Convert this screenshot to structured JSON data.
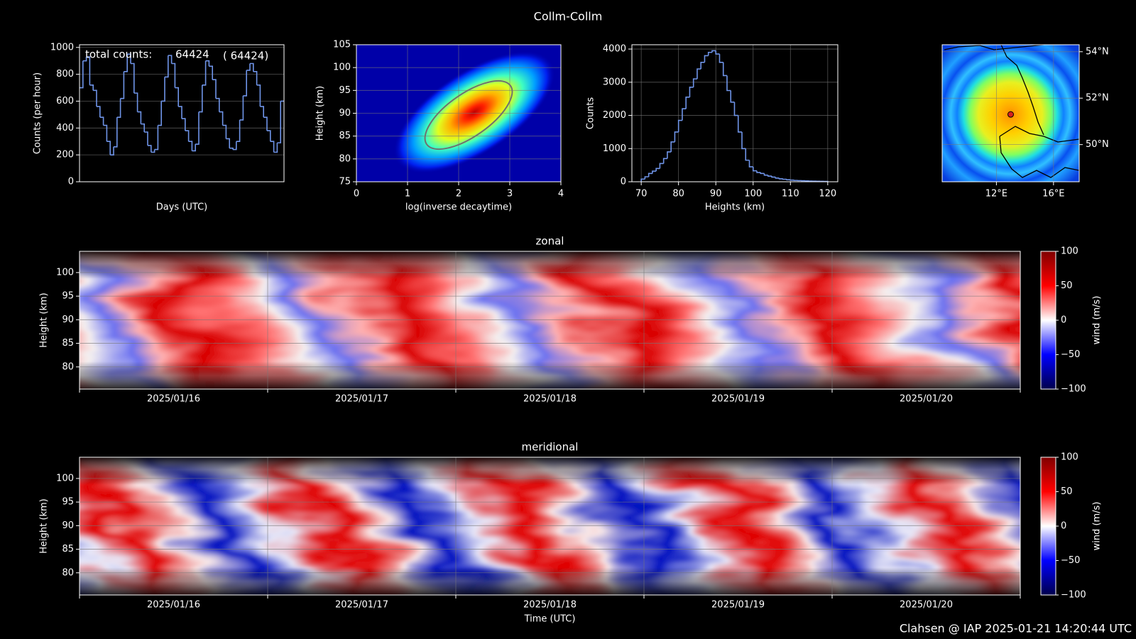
{
  "title": "Collm-Collm",
  "footer": "Clahsen @ IAP 2025-01-21 14:20:44 UTC",
  "chart_data": [
    {
      "type": "line",
      "xlabel": "Days (UTC)",
      "ylabel": "Counts (per hour)",
      "total_label": "total counts:",
      "total": 64424,
      "total_color": "#ffff00",
      "total_alt": "( 64424)",
      "color": "#6f94e8",
      "x": [
        0,
        2,
        4,
        6,
        8,
        10,
        12,
        14,
        16,
        18,
        20,
        22,
        24,
        26,
        28,
        30,
        32,
        34,
        36,
        38,
        40,
        42,
        44,
        46,
        48,
        50,
        52,
        54,
        56,
        58,
        60,
        62,
        64,
        66,
        68,
        70,
        72,
        74,
        76,
        78,
        80,
        82,
        84,
        86,
        88,
        90,
        92,
        94,
        96,
        98,
        100,
        102,
        104,
        106,
        108,
        110,
        112,
        114,
        116,
        118
      ],
      "values": [
        700,
        900,
        930,
        720,
        680,
        560,
        480,
        420,
        300,
        200,
        260,
        480,
        620,
        820,
        950,
        880,
        660,
        520,
        430,
        370,
        270,
        220,
        240,
        420,
        600,
        780,
        940,
        880,
        700,
        560,
        470,
        380,
        300,
        230,
        280,
        520,
        720,
        900,
        860,
        760,
        620,
        520,
        420,
        320,
        250,
        240,
        300,
        460,
        640,
        830,
        880,
        820,
        720,
        560,
        480,
        380,
        300,
        220,
        290,
        600
      ],
      "xlim": [
        0,
        120
      ],
      "ylim": [
        0,
        1020
      ],
      "yticks": [
        0,
        200,
        400,
        600,
        800,
        1000
      ],
      "grid": true
    },
    {
      "type": "density",
      "xlabel": "log(inverse decaytime)",
      "ylabel": "Height (km)",
      "xlim": [
        0,
        4
      ],
      "ylim": [
        75,
        105
      ],
      "xticks": [
        0,
        1,
        2,
        3,
        4
      ],
      "yticks": [
        75,
        80,
        85,
        90,
        95,
        100,
        105
      ],
      "grid": true
    },
    {
      "type": "histogram",
      "xlabel": "Heights (km)",
      "ylabel": "Counts",
      "color": "#6f94e8",
      "bins": [
        70,
        71,
        72,
        73,
        74,
        75,
        76,
        77,
        78,
        79,
        80,
        81,
        82,
        83,
        84,
        85,
        86,
        87,
        88,
        89,
        90,
        91,
        92,
        93,
        94,
        95,
        96,
        97,
        98,
        99,
        100,
        101,
        102,
        103,
        104,
        105,
        106,
        107,
        108,
        109,
        110,
        111,
        112,
        113,
        114,
        115,
        116,
        117,
        118,
        119,
        120
      ],
      "values": [
        80,
        150,
        250,
        320,
        400,
        550,
        700,
        900,
        1200,
        1500,
        1850,
        2200,
        2550,
        2850,
        3100,
        3400,
        3600,
        3800,
        3900,
        3950,
        3850,
        3600,
        3200,
        2750,
        2400,
        2000,
        1500,
        1000,
        650,
        450,
        330,
        280,
        250,
        200,
        170,
        140,
        110,
        90,
        75,
        60,
        50,
        40,
        35,
        30,
        25,
        20,
        18,
        15,
        12,
        10
      ],
      "xlim": [
        67.5,
        122.7
      ],
      "ylim": [
        0,
        4130
      ],
      "xticks": [
        70,
        80,
        90,
        100,
        110,
        120
      ],
      "yticks": [
        0,
        1000,
        2000,
        3000,
        4000
      ],
      "grid": true
    },
    {
      "type": "map",
      "station": {
        "lon": 13.0,
        "lat": 51.3
      },
      "station_color": "#d62020",
      "xlim": [
        8.2,
        17.8
      ],
      "ylim": [
        48.4,
        54.3
      ],
      "xticks": [
        {
          "value": 12,
          "label": "12°E"
        },
        {
          "value": 16,
          "label": "16°E"
        }
      ],
      "yticks": [
        {
          "value": 50,
          "label": "50°N"
        },
        {
          "value": 52,
          "label": "52°N"
        },
        {
          "value": 54,
          "label": "54°N"
        }
      ],
      "grid": true
    },
    {
      "type": "wind",
      "title": "zonal",
      "ylabel": "Height (km)",
      "categories": [
        "2025/01/16",
        "2025/01/17",
        "2025/01/18",
        "2025/01/19",
        "2025/01/20"
      ],
      "ylim": [
        75.3,
        104.5
      ],
      "yticks": [
        80,
        85,
        90,
        95,
        100
      ],
      "grid": true,
      "colorbar": {
        "label": "wind (m/s)",
        "lim": [
          -100,
          100
        ],
        "ticks": [
          {
            "value": -100,
            "label": "−100"
          },
          {
            "value": -50,
            "label": "−50"
          },
          0,
          50,
          100
        ]
      }
    },
    {
      "type": "wind",
      "title": "meridional",
      "ylabel": "Height (km)",
      "xlabel": "Time (UTC)",
      "categories": [
        "2025/01/16",
        "2025/01/17",
        "2025/01/18",
        "2025/01/19",
        "2025/01/20"
      ],
      "ylim": [
        75.3,
        104.5
      ],
      "yticks": [
        80,
        85,
        90,
        95,
        100
      ],
      "grid": true,
      "colorbar": {
        "label": "wind (m/s)",
        "lim": [
          -100,
          100
        ],
        "ticks": [
          {
            "value": -100,
            "label": "−100"
          },
          {
            "value": -50,
            "label": "−50"
          },
          0,
          50,
          100
        ]
      }
    }
  ]
}
